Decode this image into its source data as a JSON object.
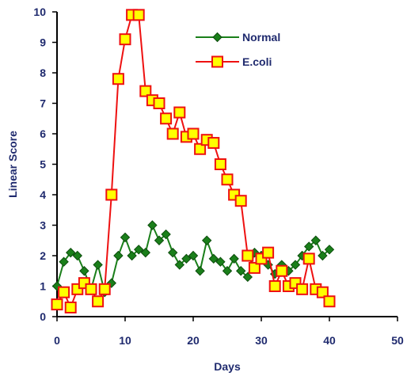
{
  "chart_data": {
    "type": "line",
    "xlabel": "Days",
    "ylabel": "Linear Score",
    "xlim": [
      0,
      50
    ],
    "ylim": [
      0,
      10
    ],
    "x_ticks": [
      0,
      10,
      20,
      30,
      40,
      50
    ],
    "y_ticks": [
      0,
      1,
      2,
      3,
      4,
      5,
      6,
      7,
      8,
      9,
      10
    ],
    "grid": false,
    "legend_position": "top-right",
    "series": [
      {
        "name": "Normal",
        "color": "#1a7f1a",
        "marker": "diamond",
        "x": [
          0,
          1,
          2,
          3,
          4,
          5,
          6,
          7,
          8,
          9,
          10,
          11,
          12,
          13,
          14,
          15,
          16,
          17,
          18,
          19,
          20,
          21,
          22,
          23,
          24,
          25,
          26,
          27,
          28,
          29,
          30,
          31,
          32,
          33,
          34,
          35,
          36,
          37,
          38,
          39,
          40
        ],
        "y": [
          1.0,
          1.8,
          2.1,
          2.0,
          1.5,
          0.9,
          1.7,
          0.8,
          1.1,
          2.0,
          2.6,
          2.0,
          2.2,
          2.1,
          3.0,
          2.5,
          2.7,
          2.1,
          1.7,
          1.9,
          2.0,
          1.5,
          2.5,
          1.9,
          1.8,
          1.5,
          1.9,
          1.5,
          1.3,
          2.1,
          2.0,
          1.7,
          1.4,
          1.7,
          1.5,
          1.7,
          2.0,
          2.3,
          2.5,
          2.0,
          2.2
        ]
      },
      {
        "name": "E.coli",
        "color": "#ee1111",
        "marker_fill": "#ffff00",
        "marker": "square",
        "x": [
          0,
          1,
          2,
          3,
          4,
          5,
          6,
          7,
          8,
          9,
          10,
          11,
          12,
          13,
          14,
          15,
          16,
          17,
          18,
          19,
          20,
          21,
          22,
          23,
          24,
          25,
          26,
          27,
          28,
          29,
          30,
          31,
          32,
          33,
          34,
          35,
          36,
          37,
          38,
          39,
          40
        ],
        "y": [
          0.4,
          0.8,
          0.3,
          0.9,
          1.1,
          0.9,
          0.5,
          0.9,
          4.0,
          7.8,
          9.1,
          9.9,
          9.9,
          7.4,
          7.1,
          7.0,
          6.5,
          6.0,
          6.7,
          5.9,
          6.0,
          5.5,
          5.8,
          5.7,
          5.0,
          4.5,
          4.0,
          3.8,
          2.0,
          1.6,
          1.9,
          2.1,
          1.0,
          1.5,
          1.0,
          1.1,
          0.9,
          1.9,
          0.9,
          0.8,
          0.5
        ]
      }
    ]
  }
}
